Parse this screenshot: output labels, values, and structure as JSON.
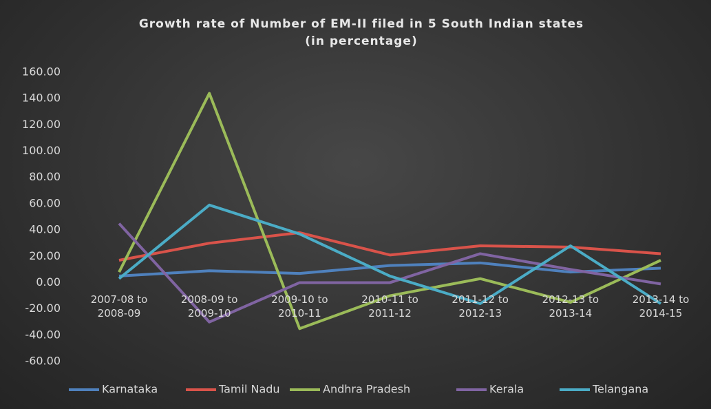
{
  "chart_data": {
    "type": "line",
    "title": [
      "Growth rate of Number of EM-II filed in 5 South Indian states",
      "(in percentage)"
    ],
    "categories": [
      "2007-08 to 2008-09",
      "2008-09 to 2009-10",
      "2009-10 to 2010-11",
      "2010-11 to 2011-12",
      "2011-12 to 2012-13",
      "2012-13 to 2013-14",
      "2013-14 to 2014-15"
    ],
    "series": [
      {
        "name": "Karnataka",
        "color": "#4f81bd",
        "values": [
          5,
          9,
          7,
          13,
          15,
          8,
          11
        ]
      },
      {
        "name": "Tamil Nadu",
        "color": "#d9534a",
        "values": [
          17,
          30,
          38,
          21,
          28,
          27,
          22
        ]
      },
      {
        "name": "Andhra Pradesh",
        "color": "#9bbb59",
        "values": [
          8,
          144,
          -35,
          -10,
          3,
          -15,
          17
        ]
      },
      {
        "name": "Kerala",
        "color": "#8064a2",
        "values": [
          45,
          -30,
          0,
          0,
          22,
          10,
          -1
        ]
      },
      {
        "name": "Telangana",
        "color": "#4bacc6",
        "values": [
          3,
          59,
          37,
          5,
          -16,
          28,
          -16
        ]
      }
    ],
    "ylim": [
      -60,
      160
    ],
    "yticks": [
      {
        "value": -60,
        "label": "-60.00"
      },
      {
        "value": -40,
        "label": "-40.00"
      },
      {
        "value": -20,
        "label": "-20.00"
      },
      {
        "value": 0,
        "label": "0.00"
      },
      {
        "value": 20,
        "label": "20.00"
      },
      {
        "value": 40,
        "label": "40.00"
      },
      {
        "value": 60,
        "label": "60.00"
      },
      {
        "value": 80,
        "label": "80.00"
      },
      {
        "value": 100,
        "label": "100.00"
      },
      {
        "value": 120,
        "label": "120.00"
      },
      {
        "value": 140,
        "label": "140.00"
      },
      {
        "value": 160,
        "label": "160.00"
      }
    ],
    "grid": false,
    "legend": "bottom"
  }
}
